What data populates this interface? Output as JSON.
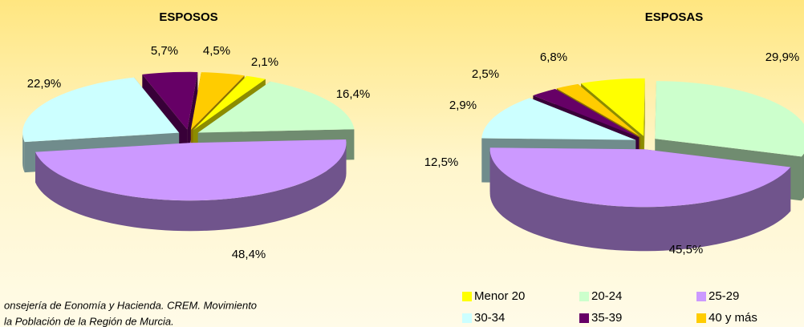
{
  "chart_data": [
    {
      "type": "pie",
      "title": "ESPOSOS",
      "values": [
        2.1,
        16.4,
        48.4,
        22.9,
        5.7,
        4.5
      ],
      "value_labels": [
        "2,1%",
        "16,4%",
        "48,4%",
        "22,9%",
        "5,7%",
        "4,5%"
      ]
    },
    {
      "type": "pie",
      "title": "ESPOSAS",
      "values": [
        6.8,
        29.9,
        45.5,
        12.5,
        2.9,
        2.5
      ],
      "value_labels": [
        "6,8%",
        "29,9%",
        "45,5%",
        "12,5%",
        "2,9%",
        "2,5%"
      ]
    }
  ],
  "legend": {
    "categories": [
      "Menor 20",
      "20-24",
      "25-29",
      "30-34",
      "35-39",
      "40 y más"
    ],
    "colors": [
      "#ffff00",
      "#ccffcc",
      "#cc99ff",
      "#ccffff",
      "#660066",
      "#ffcc00"
    ]
  },
  "source": [
    "onsejería de Eonomía y Hacienda. CREM. Movimiento",
    "la Población de la Región de Murcia."
  ]
}
